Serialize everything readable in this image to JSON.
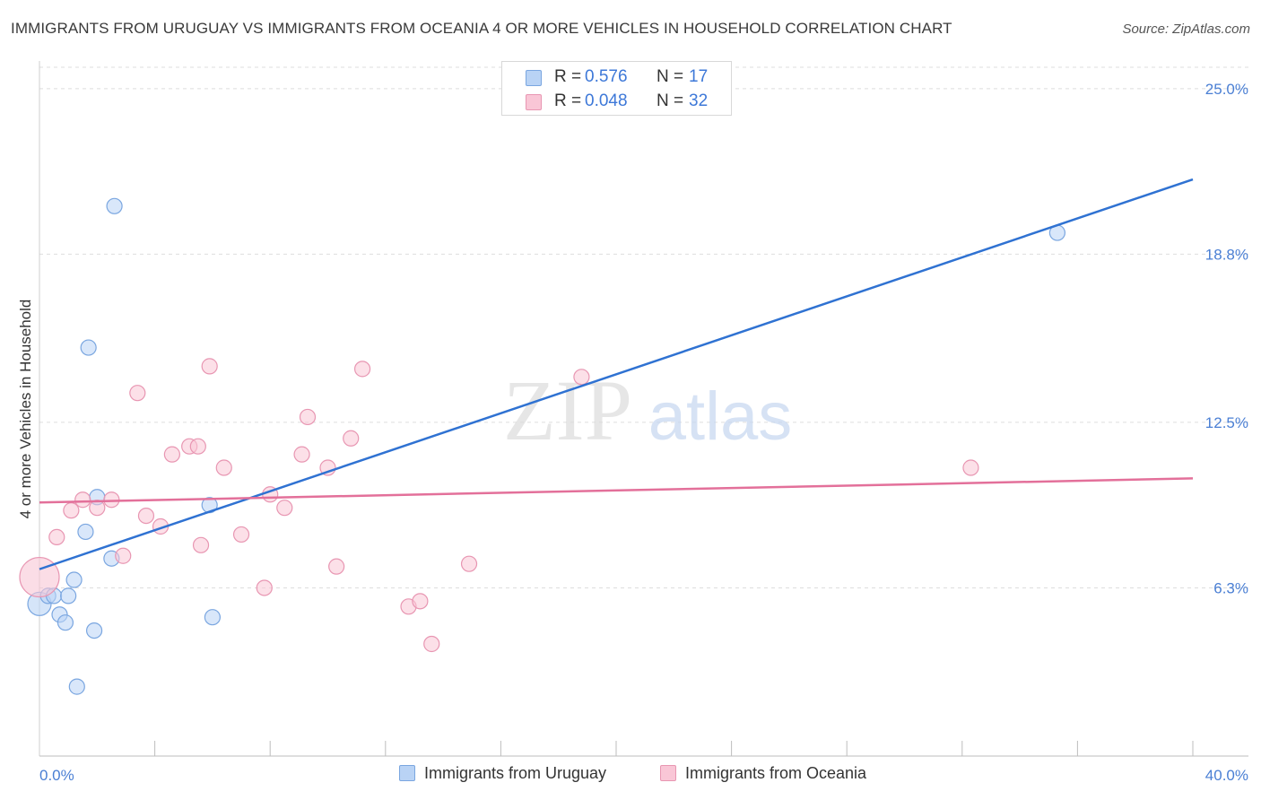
{
  "header": {
    "title": "IMMIGRANTS FROM URUGUAY VS IMMIGRANTS FROM OCEANIA 4 OR MORE VEHICLES IN HOUSEHOLD CORRELATION CHART",
    "source": "Source: ZipAtlas.com"
  },
  "watermark": {
    "zip": "ZIP",
    "atlas": "atlas"
  },
  "legend": {
    "rows": [
      {
        "r_label": "R =",
        "r_value": "0.576",
        "n_label": "N =",
        "n_value": "17"
      },
      {
        "r_label": "R =",
        "r_value": "0.048",
        "n_label": "N =",
        "n_value": "32"
      }
    ]
  },
  "colors": {
    "uruguay_fill": "#b9d3f5",
    "uruguay_stroke": "#7aa6e0",
    "uruguay_line": "#2f72d2",
    "oceania_fill": "#f9c6d6",
    "oceania_stroke": "#e896b2",
    "oceania_line": "#e3709a",
    "tick_label": "#4a7fd4",
    "grid": "#dddddd"
  },
  "chart_data": {
    "type": "scatter",
    "ylabel": "4 or more Vehicles in Household",
    "xlabel": "",
    "xlim": [
      0,
      40
    ],
    "ylim": [
      0,
      25.8
    ],
    "x_tick_labels": [
      {
        "value": 0,
        "label": "0.0%"
      },
      {
        "value": 40,
        "label": "40.0%"
      }
    ],
    "x_minor_ticks": [
      4,
      8,
      12,
      16,
      20,
      24,
      28,
      32,
      36,
      40
    ],
    "y_ticks": [
      {
        "value": 6.3,
        "label": "6.3%"
      },
      {
        "value": 12.5,
        "label": "12.5%"
      },
      {
        "value": 18.8,
        "label": "18.8%"
      },
      {
        "value": 25.0,
        "label": "25.0%"
      }
    ],
    "grid": "horizontal-dashed",
    "legend_position": "top-center",
    "series": [
      {
        "name": "Immigrants from Uruguay",
        "r": 0.576,
        "n": 17,
        "points": [
          [
            0.0,
            5.7
          ],
          [
            0.3,
            6.0
          ],
          [
            0.5,
            6.0
          ],
          [
            0.7,
            5.3
          ],
          [
            0.9,
            5.0
          ],
          [
            1.0,
            6.0
          ],
          [
            1.2,
            6.6
          ],
          [
            1.3,
            2.6
          ],
          [
            1.6,
            8.4
          ],
          [
            1.7,
            15.3
          ],
          [
            1.9,
            4.7
          ],
          [
            2.0,
            9.7
          ],
          [
            2.5,
            7.4
          ],
          [
            2.6,
            20.6
          ],
          [
            5.9,
            9.4
          ],
          [
            6.0,
            5.2
          ],
          [
            35.3,
            19.6
          ]
        ],
        "trend": {
          "x": [
            0,
            40
          ],
          "y": [
            7.0,
            21.6
          ]
        }
      },
      {
        "name": "Immigrants from Oceania",
        "r": 0.048,
        "n": 32,
        "points": [
          [
            0.0,
            6.7
          ],
          [
            0.6,
            8.2
          ],
          [
            1.1,
            9.2
          ],
          [
            1.5,
            9.6
          ],
          [
            2.0,
            9.3
          ],
          [
            2.5,
            9.6
          ],
          [
            2.9,
            7.5
          ],
          [
            3.4,
            13.6
          ],
          [
            3.7,
            9.0
          ],
          [
            4.2,
            8.6
          ],
          [
            4.6,
            11.3
          ],
          [
            5.2,
            11.6
          ],
          [
            5.5,
            11.6
          ],
          [
            5.6,
            7.9
          ],
          [
            5.9,
            14.6
          ],
          [
            6.4,
            10.8
          ],
          [
            7.0,
            8.3
          ],
          [
            7.8,
            6.3
          ],
          [
            8.0,
            9.8
          ],
          [
            8.5,
            9.3
          ],
          [
            9.1,
            11.3
          ],
          [
            9.3,
            12.7
          ],
          [
            10.0,
            10.8
          ],
          [
            10.3,
            7.1
          ],
          [
            10.8,
            11.9
          ],
          [
            11.2,
            14.5
          ],
          [
            12.8,
            5.6
          ],
          [
            13.2,
            5.8
          ],
          [
            13.6,
            4.2
          ],
          [
            14.9,
            7.2
          ],
          [
            18.8,
            14.2
          ],
          [
            32.3,
            10.8
          ]
        ],
        "trend": {
          "x": [
            0,
            40
          ],
          "y": [
            9.5,
            10.4
          ]
        }
      }
    ]
  }
}
